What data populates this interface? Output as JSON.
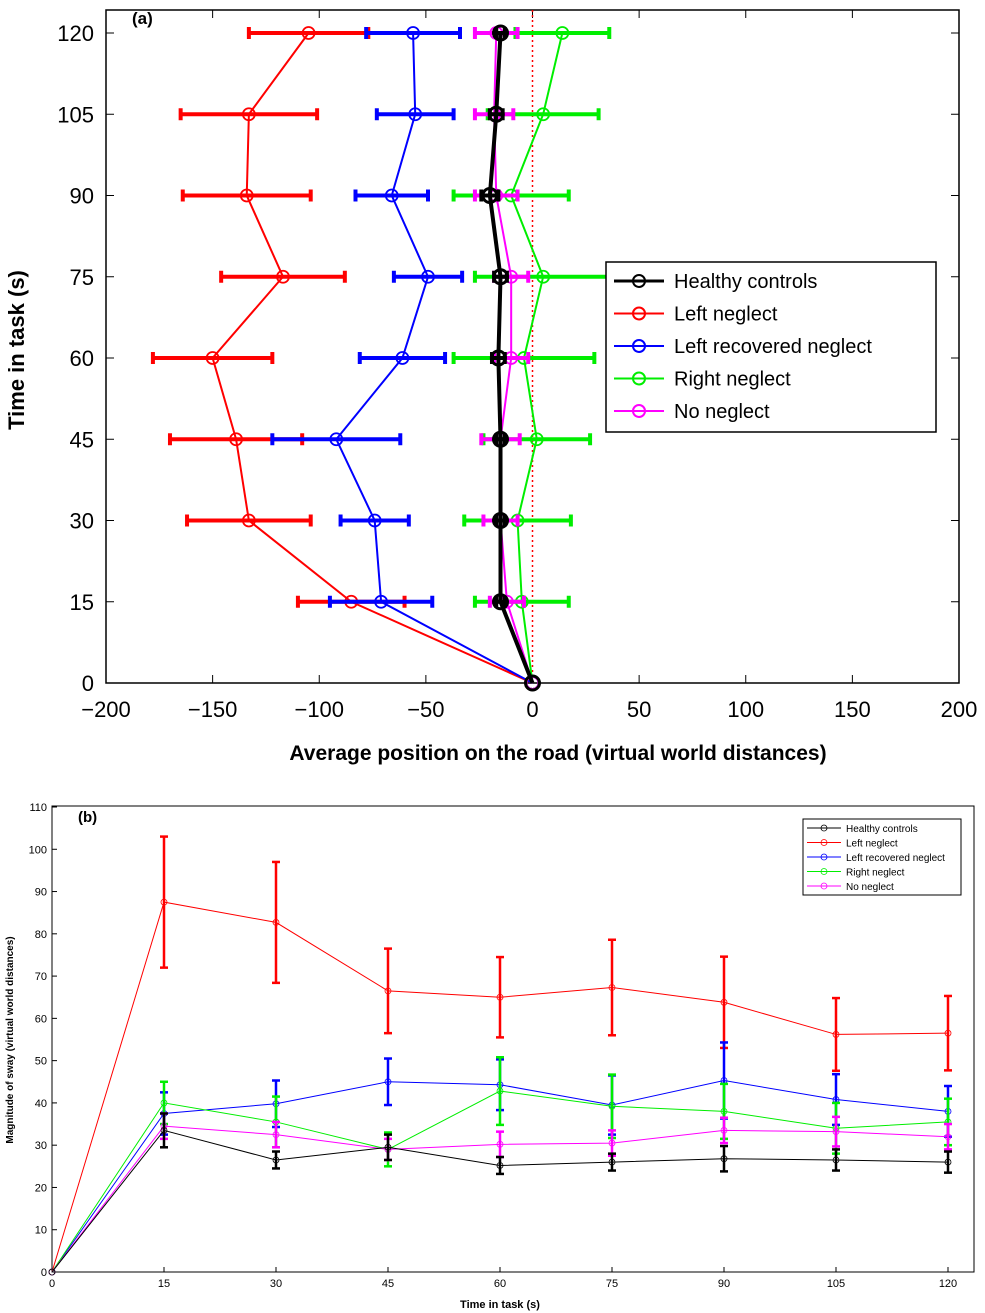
{
  "chart_data": [
    {
      "type": "line",
      "panel_label": "(a)",
      "orientation": "horizontal-time",
      "xlabel": "Average position on the  road (virtual world distances)",
      "ylabel": "Time in task (s)",
      "xlim": [
        -200,
        200
      ],
      "ylim": [
        0,
        120
      ],
      "xticks": [
        -200,
        -150,
        -100,
        -50,
        0,
        50,
        100,
        150,
        200
      ],
      "yticks": [
        0,
        15,
        30,
        45,
        60,
        75,
        90,
        105,
        120
      ],
      "reference_line_x": 0,
      "time": [
        0,
        15,
        30,
        45,
        60,
        75,
        90,
        105,
        120
      ],
      "legend_placement": "center-right",
      "series": [
        {
          "name": "Healthy controls",
          "color": "#000000",
          "position": [
            0,
            -15,
            -15,
            -15,
            -16,
            -15,
            -20,
            -17,
            -15
          ],
          "error": [
            0,
            2,
            2,
            2,
            3,
            3,
            4,
            3,
            2
          ]
        },
        {
          "name": "Left neglect",
          "color": "#ff0000",
          "position": [
            0,
            -85,
            -133,
            -139,
            -150,
            -117,
            -134,
            -133,
            -105
          ],
          "error": [
            0,
            25,
            29,
            31,
            28,
            29,
            30,
            32,
            28
          ]
        },
        {
          "name": "Left  recovered neglect",
          "color": "#0000ff",
          "position": [
            0,
            -71,
            -74,
            -92,
            -61,
            -49,
            -66,
            -55,
            -56
          ],
          "error": [
            0,
            24,
            16,
            30,
            20,
            16,
            17,
            18,
            22
          ]
        },
        {
          "name": "Right neglect",
          "color": "#00ee00",
          "position": [
            0,
            -5,
            -7,
            2,
            -4,
            5,
            -10,
            5,
            14
          ],
          "error": [
            0,
            22,
            25,
            25,
            33,
            32,
            27,
            26,
            22
          ]
        },
        {
          "name": "No neglect",
          "color": "#ff00ff",
          "position": [
            0,
            -12,
            -15,
            -15,
            -10,
            -10,
            -17,
            -18,
            -17
          ],
          "error": [
            0,
            8,
            8,
            9,
            8,
            8,
            10,
            9,
            10
          ]
        }
      ]
    },
    {
      "type": "line",
      "panel_label": "(b)",
      "xlabel": "Time in task (s)",
      "ylabel": "Magnitude of sway (virtual world distances)",
      "xlim": [
        0,
        125
      ],
      "ylim": [
        0,
        110
      ],
      "xticks": [
        0,
        15,
        30,
        45,
        60,
        75,
        90,
        105,
        120
      ],
      "yticks": [
        0,
        10,
        20,
        30,
        40,
        50,
        60,
        70,
        80,
        90,
        100,
        110
      ],
      "x": [
        0,
        15,
        30,
        45,
        60,
        75,
        90,
        105,
        120
      ],
      "legend_placement": "top-right",
      "series": [
        {
          "name": "Healthy controls",
          "color": "#000000",
          "values": [
            0,
            33.5,
            26.5,
            29.5,
            25.2,
            26,
            26.8,
            26.5,
            26
          ],
          "error": [
            0,
            4,
            2,
            3,
            2,
            2,
            3,
            2.5,
            2.5
          ]
        },
        {
          "name": "Left neglect",
          "color": "#ff0000",
          "values": [
            0,
            87.5,
            82.7,
            66.5,
            65,
            67.3,
            63.8,
            56.2,
            56.5
          ],
          "error": [
            0,
            15.5,
            14.3,
            10,
            9.5,
            11.3,
            10.8,
            8.6,
            8.8
          ]
        },
        {
          "name": "Left recovered neglect",
          "color": "#0000ff",
          "values": [
            0,
            37.5,
            39.8,
            45,
            44.3,
            39.5,
            45.3,
            40.8,
            38
          ],
          "error": [
            0,
            5,
            5.5,
            5.5,
            6,
            7,
            9,
            6,
            6
          ]
        },
        {
          "name": "Right neglect",
          "color": "#00ee00",
          "values": [
            0,
            40,
            35.5,
            29,
            42.8,
            39.2,
            38,
            34,
            35.5
          ],
          "error": [
            0,
            5,
            6,
            4,
            8,
            7.5,
            6.5,
            6,
            5.5
          ]
        },
        {
          "name": "No neglect",
          "color": "#ff00ff",
          "values": [
            0,
            34.5,
            32.5,
            29,
            30.2,
            30.5,
            33.5,
            33.2,
            32
          ],
          "error": [
            0,
            3,
            3,
            2.5,
            3,
            3,
            3,
            3.5,
            3
          ]
        }
      ]
    }
  ]
}
